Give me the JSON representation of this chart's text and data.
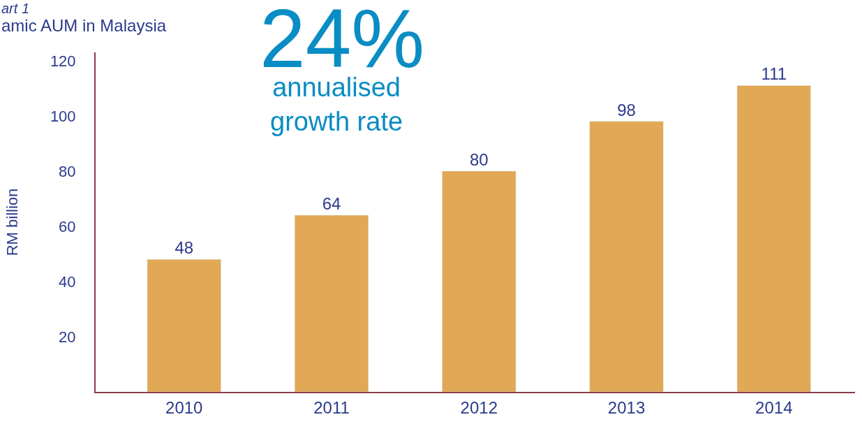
{
  "chart_data": {
    "type": "bar",
    "title": "amic AUM in Malaysia",
    "ylabel": "RM billion",
    "categories": [
      "2010",
      "2011",
      "2012",
      "2013",
      "2014"
    ],
    "values": [
      48,
      64,
      80,
      98,
      111
    ],
    "color": "#e1a855",
    "ylim": [
      0,
      123
    ],
    "yticks": [
      20,
      40,
      60,
      80,
      100,
      120
    ],
    "data_labels": true,
    "annotations": [
      "art 1",
      "24%",
      "annualised\ngrowth rate"
    ]
  }
}
